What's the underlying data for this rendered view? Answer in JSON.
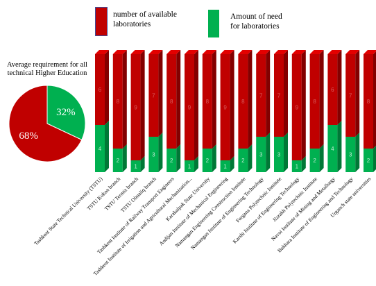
{
  "legend": {
    "available_label": "number of available\nlaboratories",
    "need_label": "Amount of need\nfor laboratories"
  },
  "colors": {
    "available": "#c00000",
    "need": "#00b050"
  },
  "chart_data": [
    {
      "type": "pie",
      "title": "Average requirement for all\ntechnical Higher Education",
      "slices": [
        {
          "name": "number of available laboratories",
          "value": 68,
          "label": "68%"
        },
        {
          "name": "Amount of need for laboratories",
          "value": 32,
          "label": "32%"
        }
      ]
    },
    {
      "type": "bar",
      "stacked": true,
      "categories": [
        "Tashkent State Technical University (TSTU)",
        "TSTU Kokon branch",
        "TSTU Termiz branch",
        "TSTU Olmaliq branch",
        "Tashkent Institute of Railway Transport Engineers",
        "Tashkent Institute of Irrigation and Agricultural Mechanization...",
        "Karakalpak State University",
        "Andijan Institute of Mechanical Engineering",
        "Namangan Engineering Construction Institute",
        "Namangan Institute of Engineering Technology",
        "Fergana Polytechnic Institute",
        "Karshi Institute of Engineering Technology",
        "Jizzakh Polytechnic Institute",
        "Navoi Institute of Mining and Metallurgy",
        "Bukhara Institute of Engineering and Technology",
        "Urganch state universities"
      ],
      "series": [
        {
          "name": "Amount of need for laboratories",
          "values": [
            4,
            2,
            1,
            3,
            2,
            1,
            2,
            1,
            2,
            3,
            3,
            1,
            2,
            4,
            3,
            2
          ]
        },
        {
          "name": "number of available laboratories",
          "values": [
            6,
            8,
            9,
            7,
            8,
            9,
            8,
            9,
            8,
            7,
            7,
            9,
            8,
            6,
            7,
            8
          ]
        }
      ],
      "ylim": [
        0,
        10
      ],
      "grid": false,
      "legend_position": "top"
    }
  ]
}
